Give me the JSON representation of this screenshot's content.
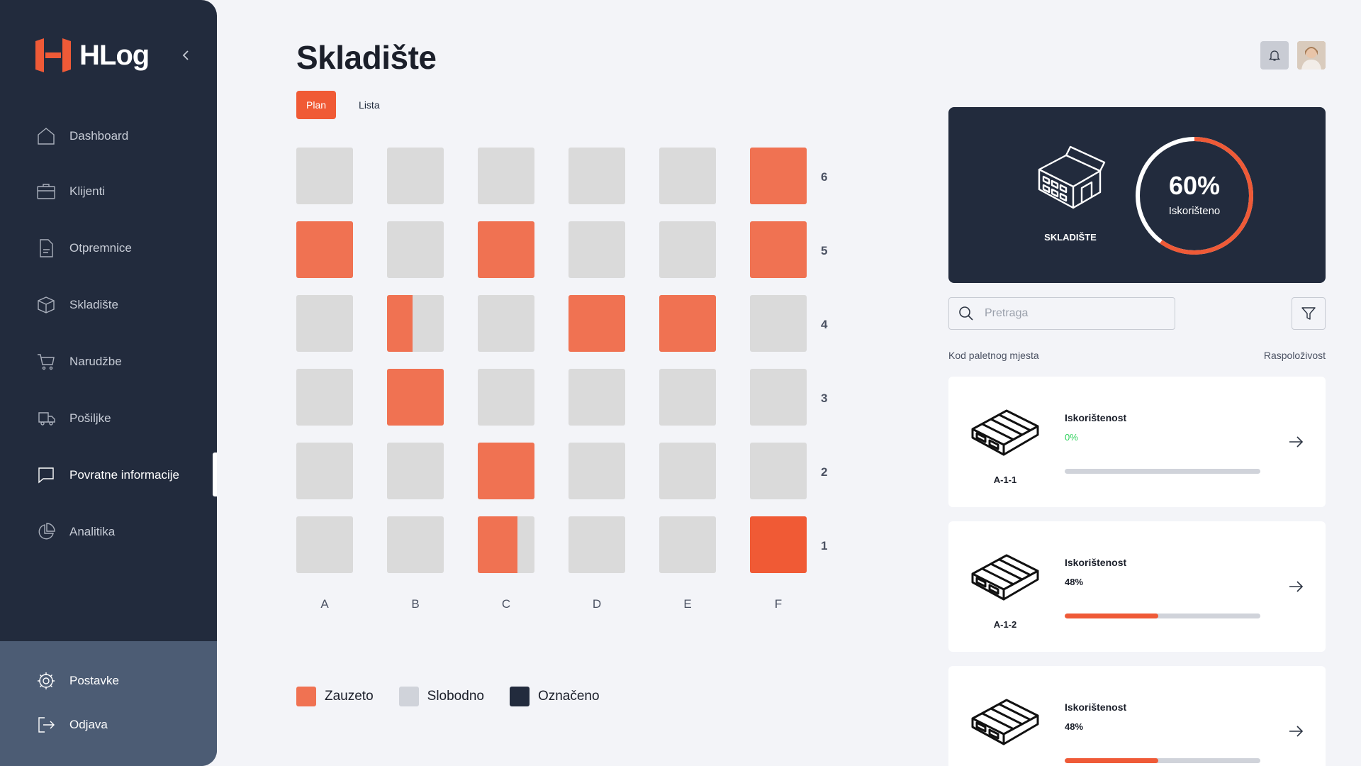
{
  "app": {
    "brand": "HLog"
  },
  "sidebar": {
    "items": [
      {
        "label": "Dashboard",
        "icon": "home-icon"
      },
      {
        "label": "Klijenti",
        "icon": "briefcase-icon"
      },
      {
        "label": "Otpremnice",
        "icon": "document-icon"
      },
      {
        "label": "Skladište",
        "icon": "box-icon"
      },
      {
        "label": "Narudžbe",
        "icon": "cart-icon"
      },
      {
        "label": "Pošiljke",
        "icon": "truck-icon"
      },
      {
        "label": "Povratne informacije",
        "icon": "chat-icon",
        "active": true
      },
      {
        "label": "Analitika",
        "icon": "pie-chart-icon"
      }
    ],
    "bottom": [
      {
        "label": "Postavke",
        "icon": "gear-icon"
      },
      {
        "label": "Odjava",
        "icon": "logout-icon"
      }
    ]
  },
  "header": {
    "title": "Skladište",
    "tabs": [
      {
        "label": "Plan",
        "active": true
      },
      {
        "label": "Lista",
        "active": false
      }
    ]
  },
  "warehouse_grid": {
    "columns": [
      "A",
      "B",
      "C",
      "D",
      "E",
      "F"
    ],
    "rows": [
      "6",
      "5",
      "4",
      "3",
      "2",
      "1"
    ],
    "occupancy": [
      [
        0,
        0,
        0,
        0,
        0,
        1
      ],
      [
        1,
        0,
        1,
        0,
        0,
        1
      ],
      [
        0,
        0.45,
        0,
        1,
        1,
        0
      ],
      [
        0,
        1,
        0,
        0,
        0,
        0
      ],
      [
        0,
        0,
        1,
        0,
        0,
        0
      ],
      [
        0,
        0,
        0.7,
        0,
        0,
        1
      ]
    ]
  },
  "legend": [
    {
      "label": "Zauzeto",
      "color": "#f07252"
    },
    {
      "label": "Slobodno",
      "color": "#d0d3da"
    },
    {
      "label": "Označeno",
      "color": "#222b3d"
    }
  ],
  "stats": {
    "warehouse_label": "SKLADIŠTE",
    "usage_percent": "60%",
    "usage_fraction": 0.6,
    "usage_label": "Iskorišteno"
  },
  "search": {
    "placeholder": "Pretraga",
    "value": ""
  },
  "list": {
    "col_code": "Kod paletnog mjesta",
    "col_availability": "Raspoloživost",
    "items": [
      {
        "code": "A-1-1",
        "usage_label": "Iskorištenost",
        "usage_text": "0%",
        "usage_fraction": 0
      },
      {
        "code": "A-1-2",
        "usage_label": "Iskorištenost",
        "usage_text": "48%",
        "usage_fraction": 0.48
      },
      {
        "code": "",
        "usage_label": "Iskorištenost",
        "usage_text": "48%",
        "usage_fraction": 0.48
      }
    ]
  },
  "colors": {
    "accent": "#f05a35",
    "occupied": "#f07252",
    "free": "#dadada",
    "sidebar": "#222b3d"
  }
}
